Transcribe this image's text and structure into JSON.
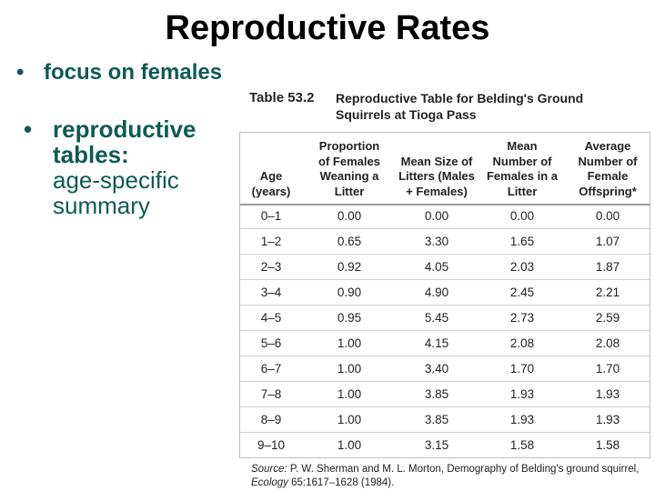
{
  "slide": {
    "title": "Reproductive Rates",
    "bullets": [
      {
        "marker": "•",
        "text": "focus on females"
      },
      {
        "marker": "•",
        "strong": "reproductive tables:",
        "rest": "age-specific summary"
      }
    ]
  },
  "table": {
    "number": "Table 53.2",
    "caption": "Reproductive Table for Belding's Ground Squirrels at Tioga Pass",
    "headers": [
      "Age (years)",
      "Proportion of Females Weaning a Litter",
      "Mean Size of Litters (Males + Females)",
      "Mean Number of Females in a Litter",
      "Average Number of Female Offspring*"
    ],
    "rows": [
      [
        "0–1",
        "0.00",
        "0.00",
        "0.00",
        "0.00"
      ],
      [
        "1–2",
        "0.65",
        "3.30",
        "1.65",
        "1.07"
      ],
      [
        "2–3",
        "0.92",
        "4.05",
        "2.03",
        "1.87"
      ],
      [
        "3–4",
        "0.90",
        "4.90",
        "2.45",
        "2.21"
      ],
      [
        "4–5",
        "0.95",
        "5.45",
        "2.73",
        "2.59"
      ],
      [
        "5–6",
        "1.00",
        "4.15",
        "2.08",
        "2.08"
      ],
      [
        "6–7",
        "1.00",
        "3.40",
        "1.70",
        "1.70"
      ],
      [
        "7–8",
        "1.00",
        "3.85",
        "1.93",
        "1.93"
      ],
      [
        "8–9",
        "1.00",
        "3.85",
        "1.93",
        "1.93"
      ],
      [
        "9–10",
        "1.00",
        "3.15",
        "1.58",
        "1.58"
      ]
    ],
    "source_label": "Source:",
    "source_text": "P. W. Sherman and M. L. Morton, Demography of Belding's ground squirrel,",
    "source_journal": "Ecology",
    "source_ref": "65:1617–1628 (1984)."
  }
}
